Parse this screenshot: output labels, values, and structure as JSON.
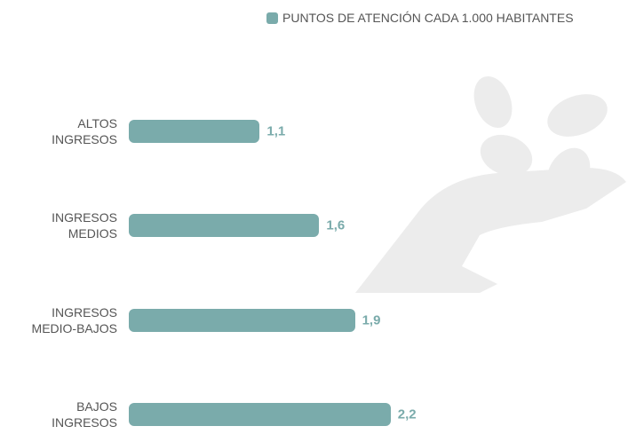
{
  "chart_data": {
    "type": "bar",
    "orientation": "horizontal",
    "categories": [
      "ALTOS INGRESOS",
      "INGRESOS MEDIOS",
      "INGRESOS MEDIO-BAJOS",
      "BAJOS INGRESOS"
    ],
    "series": [
      {
        "name": "PUNTOS DE ATENCIÓN CADA 1.000 HABITANTES",
        "color": "#7aabab",
        "values": [
          1.1,
          1.6,
          1.9,
          2.2
        ],
        "value_labels": [
          "1,1",
          "1,6",
          "1,9",
          "2,2"
        ]
      }
    ]
  }
}
